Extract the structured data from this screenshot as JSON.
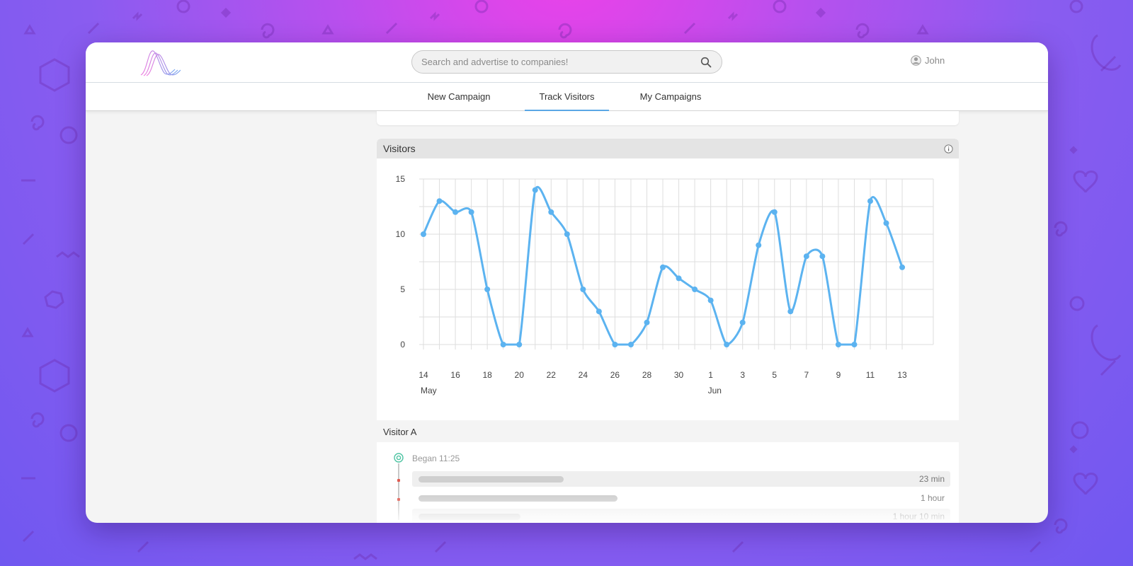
{
  "app": {
    "search_placeholder": "Search and advertise to companies!",
    "user_name": "John",
    "accent_color": "#5ba8e6",
    "logo_gradient": [
      "#f080e0",
      "#7aa8f0"
    ]
  },
  "nav": {
    "tabs": [
      {
        "label": "New Campaign",
        "active": false
      },
      {
        "label": "Track Visitors",
        "active": true
      },
      {
        "label": "My Campaigns",
        "active": false
      }
    ]
  },
  "visitors_card": {
    "title": "Visitors",
    "info_icon": "info-icon"
  },
  "chart_data": {
    "type": "line",
    "title": "",
    "xlabel": "",
    "ylabel": "",
    "ylim": [
      0,
      15
    ],
    "yticks": [
      0,
      5,
      10,
      15
    ],
    "grid": true,
    "line_color": "#5cb3f0",
    "x": [
      "May 14",
      "May 15",
      "May 16",
      "May 17",
      "May 18",
      "May 19",
      "May 20",
      "May 21",
      "May 22",
      "May 23",
      "May 24",
      "May 25",
      "May 26",
      "May 27",
      "May 28",
      "May 29",
      "May 30",
      "May 31",
      "Jun 1",
      "Jun 2",
      "Jun 3",
      "Jun 4",
      "Jun 5",
      "Jun 6",
      "Jun 7",
      "Jun 8",
      "Jun 9",
      "Jun 10",
      "Jun 11",
      "Jun 12",
      "Jun 13"
    ],
    "x_tick_labels": [
      "14",
      "16",
      "18",
      "20",
      "22",
      "24",
      "26",
      "28",
      "30",
      "1",
      "3",
      "5",
      "7",
      "9",
      "11",
      "13"
    ],
    "month_labels": [
      "May",
      "Jun"
    ],
    "series": [
      {
        "values": [
          10,
          13,
          12,
          12,
          5,
          0,
          0,
          14,
          12,
          10,
          5,
          3,
          0,
          0,
          2,
          7,
          6,
          5,
          4,
          0,
          2,
          9,
          12,
          3,
          8,
          8,
          0,
          0,
          13,
          11,
          7
        ]
      }
    ]
  },
  "visitor_timeline": {
    "visitor_label": "Visitor A",
    "began": "Began 11:25",
    "sessions": [
      {
        "duration": "23 min",
        "bar_fill": 0.27
      },
      {
        "duration": "1 hour",
        "bar_fill": 0.37
      },
      {
        "duration": "1 hour 10 min",
        "bar_fill": 0.19
      }
    ]
  }
}
